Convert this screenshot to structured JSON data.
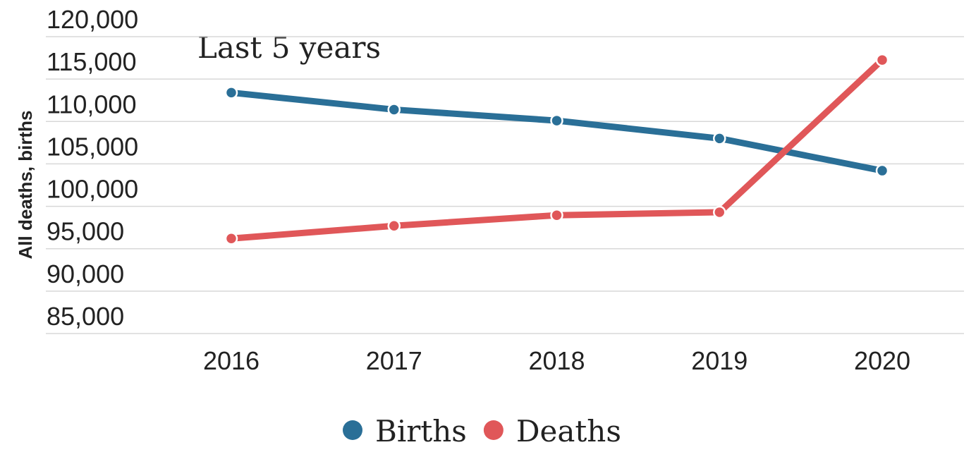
{
  "chart_data": {
    "type": "line",
    "title": "Last 5 years",
    "y_label": "All deaths, births",
    "categories": [
      "2016",
      "2017",
      "2018",
      "2019",
      "2020"
    ],
    "series": [
      {
        "name": "Births",
        "color": "#2a6f97",
        "values": [
          113400,
          111400,
          110100,
          108000,
          104200
        ]
      },
      {
        "name": "Deaths",
        "color": "#e05759",
        "values": [
          96200,
          97700,
          98950,
          99300,
          117250
        ]
      }
    ],
    "ylim": [
      85000,
      120000
    ],
    "yticks": [
      {
        "value": 85000,
        "label": "85,000"
      },
      {
        "value": 90000,
        "label": "90,000"
      },
      {
        "value": 95000,
        "label": "95,000"
      },
      {
        "value": 100000,
        "label": "100,000"
      },
      {
        "value": 105000,
        "label": "105,000"
      },
      {
        "value": 110000,
        "label": "110,000"
      },
      {
        "value": 115000,
        "label": "115,000"
      },
      {
        "value": 120000,
        "label": "120,000"
      }
    ],
    "grid": true,
    "legend": "bottom"
  }
}
